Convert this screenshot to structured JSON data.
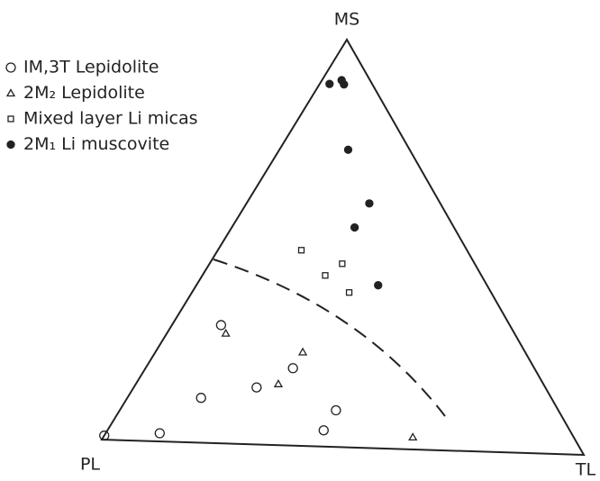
{
  "chart_data": {
    "type": "ternary",
    "components": [
      "PL",
      "MS",
      "TL"
    ],
    "series": [
      {
        "name": "IM,3T Lepidolite",
        "marker": "circle",
        "color": "#222",
        "values": [
          [
            99,
            1,
            0
          ],
          [
            87,
            2,
            11
          ],
          [
            74,
            11,
            15
          ],
          [
            61,
            29,
            10
          ],
          [
            61,
            14,
            25
          ],
          [
            51,
            19,
            30
          ],
          [
            47,
            9,
            44
          ],
          [
            52,
            4,
            44
          ]
        ]
      },
      {
        "name": "2M₂ Lepidolite",
        "marker": "triangle",
        "color": "#222",
        "values": [
          [
            61,
            27,
            12
          ],
          [
            56,
            15,
            29
          ],
          [
            47,
            23,
            30
          ],
          [
            34,
            3,
            63
          ]
        ]
      },
      {
        "name": "Mixed layer Li micas",
        "marker": "square",
        "color": "#222",
        "values": [
          [
            35,
            48,
            17
          ],
          [
            28,
            45,
            27
          ],
          [
            33,
            42,
            25
          ],
          [
            30,
            38,
            32
          ]
        ]
      },
      {
        "name": "2M₁ Li muscovite",
        "marker": "dot",
        "color": "#222",
        "values": [
          [
            9,
            89,
            2
          ],
          [
            6,
            90,
            4
          ],
          [
            6,
            89,
            5
          ],
          [
            13,
            73,
            14
          ],
          [
            15,
            60,
            25
          ],
          [
            21,
            54,
            25
          ],
          [
            23,
            40,
            37
          ]
        ]
      }
    ]
  }
}
